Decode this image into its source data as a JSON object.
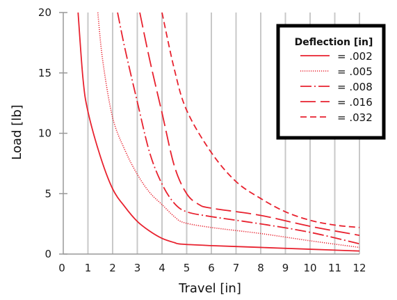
{
  "chart_data": {
    "type": "line",
    "xlabel": "Travel [in]",
    "ylabel": "Load [lb]",
    "xlim": [
      0,
      12
    ],
    "ylim": [
      0,
      20
    ],
    "x_ticks": [
      0,
      1,
      2,
      3,
      4,
      5,
      6,
      7,
      8,
      9,
      10,
      11,
      12
    ],
    "y_ticks": [
      0,
      5,
      10,
      15,
      20
    ],
    "grid": "vertical",
    "legend_position": "top-right",
    "legend_title": "Deflection [in]",
    "colors": {
      "series": "#e8212e",
      "grid": "#c8c8c8",
      "axis": "#999999",
      "legend_border": "#000000"
    },
    "series": [
      {
        "name": "= .002",
        "dash": "solid",
        "points": [
          [
            0.6,
            20
          ],
          [
            0.8,
            14.5
          ],
          [
            1,
            11.8
          ],
          [
            1.5,
            8.1
          ],
          [
            2,
            5.4
          ],
          [
            2.5,
            3.9
          ],
          [
            3,
            2.7
          ],
          [
            3.5,
            1.9
          ],
          [
            4,
            1.3
          ],
          [
            4.5,
            0.95
          ],
          [
            4.8,
            0.82
          ],
          [
            6,
            0.7
          ],
          [
            8,
            0.55
          ],
          [
            10,
            0.4
          ],
          [
            12,
            0.25
          ]
        ]
      },
      {
        "name": "= .005",
        "dash": "dotted",
        "points": [
          [
            1.4,
            20
          ],
          [
            1.6,
            16
          ],
          [
            2,
            11.3
          ],
          [
            2.5,
            8.6
          ],
          [
            3,
            6.6
          ],
          [
            3.5,
            5.1
          ],
          [
            4,
            4.1
          ],
          [
            4.5,
            3.1
          ],
          [
            4.9,
            2.6
          ],
          [
            6,
            2.2
          ],
          [
            8,
            1.7
          ],
          [
            10,
            1.1
          ],
          [
            12,
            0.55
          ]
        ]
      },
      {
        "name": "= .008",
        "dash": "dashdot",
        "points": [
          [
            2.2,
            20
          ],
          [
            2.5,
            17
          ],
          [
            3,
            12.6
          ],
          [
            3.5,
            8.4
          ],
          [
            4,
            5.8
          ],
          [
            4.5,
            4.2
          ],
          [
            5,
            3.5
          ],
          [
            6,
            3.1
          ],
          [
            8,
            2.5
          ],
          [
            10,
            1.8
          ],
          [
            12,
            0.85
          ]
        ]
      },
      {
        "name": "= .016",
        "dash": "longdash",
        "points": [
          [
            3.1,
            20
          ],
          [
            3.5,
            16.1
          ],
          [
            4,
            11.7
          ],
          [
            4.5,
            7.3
          ],
          [
            5,
            5
          ],
          [
            5.5,
            4.1
          ],
          [
            6,
            3.8
          ],
          [
            8,
            3.2
          ],
          [
            10,
            2.3
          ],
          [
            12,
            1.55
          ]
        ]
      },
      {
        "name": "= .032",
        "dash": "shortdash",
        "points": [
          [
            4,
            20
          ],
          [
            4.5,
            15.3
          ],
          [
            5,
            11.9
          ],
          [
            6,
            8.4
          ],
          [
            7,
            6
          ],
          [
            8,
            4.6
          ],
          [
            9,
            3.5
          ],
          [
            10,
            2.8
          ],
          [
            11,
            2.4
          ],
          [
            12,
            2.2
          ]
        ]
      }
    ]
  }
}
